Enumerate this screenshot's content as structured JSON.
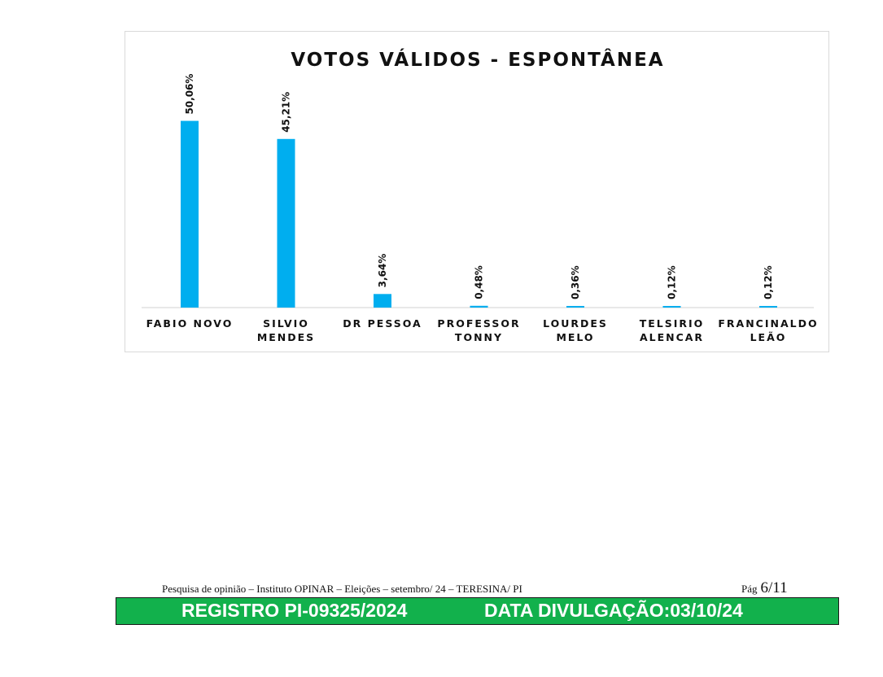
{
  "chart_data": {
    "type": "bar",
    "title": "VOTOS VÁLIDOS - ESPONTÂNEA",
    "categories": [
      [
        "FABIO NOVO"
      ],
      [
        "SILVIO",
        "MENDES"
      ],
      [
        "DR PESSOA"
      ],
      [
        "PROFESSOR",
        "TONNY"
      ],
      [
        "LOURDES",
        "MELO"
      ],
      [
        "TELSIRIO",
        "ALENCAR"
      ],
      [
        "FRANCINALDO",
        "LEÃO"
      ]
    ],
    "values": [
      50.06,
      45.21,
      3.64,
      0.48,
      0.36,
      0.12,
      0.12
    ],
    "data_labels": [
      "50,06%",
      "45,21%",
      "3,64%",
      "0,48%",
      "0,36%",
      "0,12%",
      "0,12%"
    ],
    "ylim": [
      0,
      60
    ],
    "grid": false,
    "legend": "none",
    "bar_color": "#00aeef",
    "axis_color": "#d9d9d9"
  },
  "footer": {
    "caption": "Pesquisa de opinião – Instituto OPINAR – Eleições – setembro/ 24 – TERESINA/ PI",
    "page_prefix": "Pág",
    "page_value": "6/11",
    "registry": "REGISTRO PI-09325/2024",
    "release_date": "DATA DIVULGAÇÃO:03/10/24",
    "banner_color": "#12b14c"
  }
}
